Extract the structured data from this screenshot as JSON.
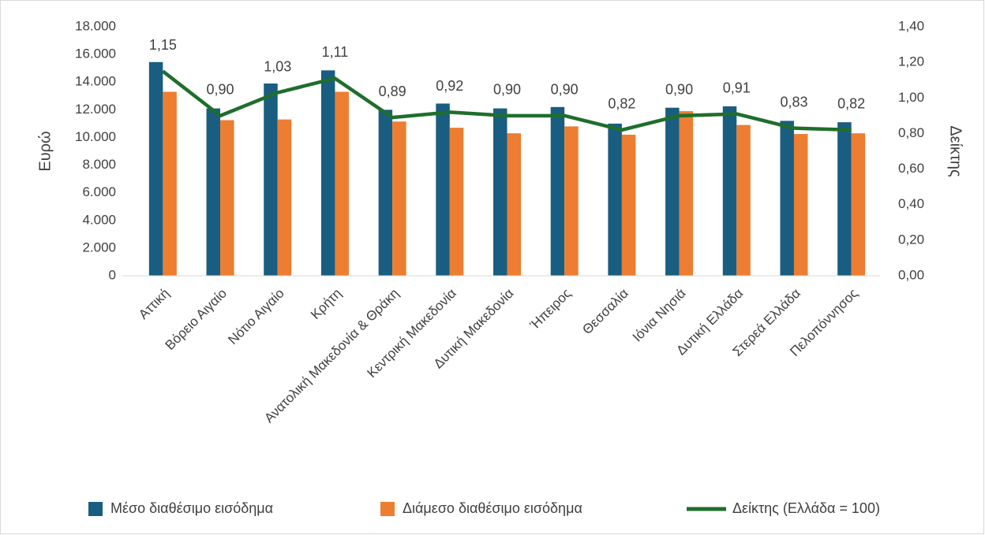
{
  "chart_data": {
    "type": "bar",
    "categories": [
      "Αττική",
      "Βόρειο Αιγαίο",
      "Νότιο Αιγαίο",
      "Κρήτη",
      "Ανατολική Μακεδονία & Θράκη",
      "Κεντρική Μακεδονία",
      "Δυτική Μακεδονία",
      "Ήπειρος",
      "Θεσσαλία",
      "Ιόνια Νησιά",
      "Δυτική Ελλάδα",
      "Στερεά Ελλάδα",
      "Πελοπόννησος"
    ],
    "series": [
      {
        "name": "Μέσο διαθέσιμο εισόδημα",
        "color": "#195e80",
        "type": "bar",
        "values": [
          15450,
          12100,
          13900,
          14850,
          12000,
          12450,
          12100,
          12200,
          11000,
          12150,
          12250,
          11200,
          11100
        ]
      },
      {
        "name": "Διάμεσο διαθέσιμο εισόδημα",
        "color": "#ed7d31",
        "type": "bar",
        "values": [
          13300,
          11250,
          11300,
          13300,
          11150,
          10700,
          10300,
          10800,
          10200,
          11900,
          10900,
          10250,
          10300
        ]
      },
      {
        "name": "Δείκτης (Ελλάδα = 100)",
        "color": "#1f6e2c",
        "type": "line",
        "axis": "y2",
        "values": [
          1.15,
          0.9,
          1.03,
          1.11,
          0.89,
          0.92,
          0.9,
          0.9,
          0.82,
          0.9,
          0.91,
          0.83,
          0.82
        ],
        "value_labels": [
          "1,15",
          "0,90",
          "1,03",
          "1,11",
          "0,89",
          "0,92",
          "0,90",
          "0,90",
          "0,82",
          "0,90",
          "0,91",
          "0,83",
          "0,82"
        ]
      }
    ],
    "ylabel": "Ευρώ",
    "y2label": "Δείκτης",
    "ylim": [
      0,
      18000
    ],
    "yticks": [
      0,
      {
        "value": 2000,
        "label": "2.000"
      },
      {
        "value": 4000,
        "label": "4.000"
      },
      {
        "value": 6000,
        "label": "6.000"
      },
      {
        "value": 8000,
        "label": "8.000"
      },
      {
        "value": 10000,
        "label": "10.000"
      },
      {
        "value": 12000,
        "label": "12.000"
      },
      {
        "value": 14000,
        "label": "14.000"
      },
      {
        "value": 16000,
        "label": "16.000"
      },
      {
        "value": 18000,
        "label": "18.000"
      }
    ],
    "y2lim": [
      0,
      1.4
    ],
    "y2ticks": [
      {
        "value": 0,
        "label": "0,00"
      },
      {
        "value": 0.2,
        "label": "0,20"
      },
      {
        "value": 0.4,
        "label": "0,40"
      },
      {
        "value": 0.6,
        "label": "0,60"
      },
      {
        "value": 0.8,
        "label": "0,80"
      },
      {
        "value": 1.0,
        "label": "1,00"
      },
      {
        "value": 1.2,
        "label": "1,20"
      },
      {
        "value": 1.4,
        "label": "1,40"
      }
    ],
    "legend": "bottom"
  }
}
